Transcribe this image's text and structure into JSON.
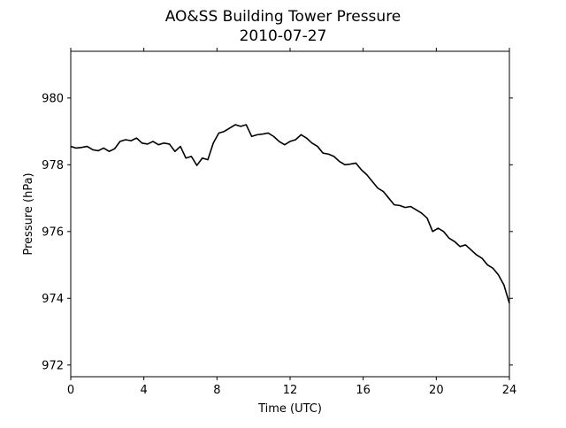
{
  "chart_data": {
    "type": "line",
    "title": "AO&SS Building Tower Pressure",
    "subtitle": "2010-07-27",
    "xlabel": "Time (UTC)",
    "ylabel": "Pressure (hPa)",
    "xlim": [
      0,
      24
    ],
    "ylim": [
      971.65,
      981.4
    ],
    "x_ticks": [
      0,
      4,
      8,
      12,
      16,
      20,
      24
    ],
    "y_ticks": [
      972,
      974,
      976,
      978,
      980
    ],
    "grid": false,
    "legend": "none",
    "line_color": "#000000",
    "series": [
      {
        "x": [
          0,
          0.3,
          0.6,
          0.9,
          1.2,
          1.5,
          1.8,
          2.1,
          2.4,
          2.7,
          3.0,
          3.3,
          3.6,
          3.9,
          4.2,
          4.5,
          4.8,
          5.1,
          5.4,
          5.7,
          6.0,
          6.3,
          6.6,
          6.9,
          7.2,
          7.5,
          7.8,
          8.1,
          8.4,
          8.7,
          9.0,
          9.3,
          9.6,
          9.9,
          10.2,
          10.5,
          10.8,
          11.1,
          11.4,
          11.7,
          12.0,
          12.3,
          12.6,
          12.9,
          13.2,
          13.5,
          13.8,
          14.1,
          14.4,
          14.7,
          15.0,
          15.3,
          15.6,
          15.9,
          16.2,
          16.5,
          16.8,
          17.1,
          17.4,
          17.7,
          18.0,
          18.3,
          18.6,
          18.9,
          19.2,
          19.5,
          19.8,
          20.1,
          20.4,
          20.7,
          21.0,
          21.3,
          21.6,
          21.9,
          22.2,
          22.5,
          22.8,
          23.1,
          23.4,
          23.7,
          24.0
        ],
        "y": [
          978.55,
          978.5,
          978.52,
          978.55,
          978.45,
          978.42,
          978.5,
          978.4,
          978.48,
          978.7,
          978.75,
          978.72,
          978.8,
          978.65,
          978.62,
          978.7,
          978.6,
          978.65,
          978.62,
          978.4,
          978.55,
          978.2,
          978.25,
          977.98,
          978.2,
          978.15,
          978.65,
          978.95,
          979.0,
          979.1,
          979.2,
          979.15,
          979.2,
          978.85,
          978.9,
          978.92,
          978.95,
          978.85,
          978.7,
          978.6,
          978.7,
          978.75,
          978.9,
          978.8,
          978.65,
          978.55,
          978.35,
          978.32,
          978.25,
          978.1,
          978.0,
          978.02,
          978.05,
          977.85,
          977.7,
          977.5,
          977.3,
          977.2,
          977.0,
          976.8,
          976.78,
          976.72,
          976.75,
          976.65,
          976.55,
          976.4,
          976.0,
          976.1,
          976.0,
          975.8,
          975.7,
          975.55,
          975.6,
          975.45,
          975.3,
          975.2,
          975.0,
          974.9,
          974.7,
          974.4,
          973.85
        ]
      }
    ]
  }
}
